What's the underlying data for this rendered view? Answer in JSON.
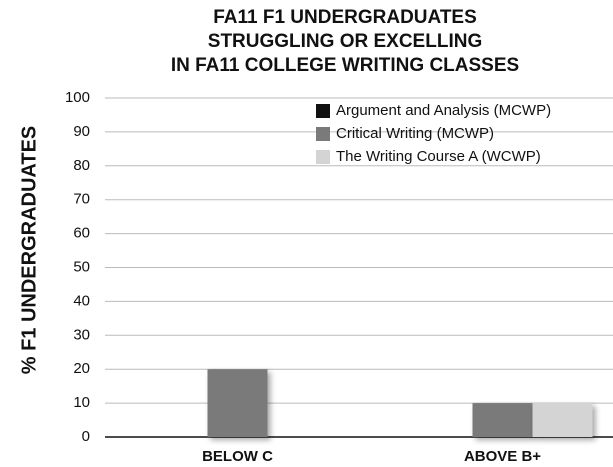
{
  "chart_data": {
    "type": "bar",
    "title": [
      "FA11 F1 UNDERGRADUATES",
      "STRUGGLING OR EXCELLING",
      "IN FA11 COLLEGE WRITING CLASSES"
    ],
    "y_label": "% F1 UNDERGRADUATES",
    "categories": [
      "BELOW C",
      "ABOVE B+"
    ],
    "series": [
      {
        "name": "Argument and Analysis (MCWP)",
        "color": "#111111",
        "values": [
          0,
          0
        ]
      },
      {
        "name": "Critical Writing (MCWP)",
        "color": "#7a7a7a",
        "values": [
          20,
          10
        ]
      },
      {
        "name": "The Writing Course A (WCWP)",
        "color": "#d4d4d4",
        "values": [
          0,
          10
        ]
      }
    ],
    "ylim": [
      0,
      100
    ],
    "yticks": [
      0,
      10,
      20,
      30,
      40,
      50,
      60,
      70,
      80,
      90,
      100
    ],
    "grid": true,
    "legend": "top-right"
  }
}
